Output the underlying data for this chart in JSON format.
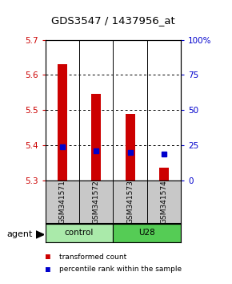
{
  "title": "GDS3547 / 1437956_at",
  "samples": [
    "GSM341571",
    "GSM341572",
    "GSM341573",
    "GSM341574"
  ],
  "bar_bottoms": [
    5.3,
    5.3,
    5.3,
    5.3
  ],
  "bar_tops": [
    5.63,
    5.545,
    5.49,
    5.335
  ],
  "percentile_values": [
    5.395,
    5.385,
    5.38,
    5.375
  ],
  "ylim": [
    5.3,
    5.7
  ],
  "yticks_left": [
    5.3,
    5.4,
    5.5,
    5.6,
    5.7
  ],
  "yticks_right": [
    0,
    25,
    50,
    75,
    100
  ],
  "bar_color": "#CC0000",
  "dot_color": "#0000CC",
  "left_tick_color": "#CC0000",
  "right_tick_color": "#0000CC",
  "legend_items": [
    {
      "color": "#CC0000",
      "label": "transformed count"
    },
    {
      "color": "#0000CC",
      "label": "percentile rank within the sample"
    }
  ],
  "agent_label": "agent",
  "sample_box_color": "#C8C8C8",
  "control_color": "#AAEAAA",
  "u28_color": "#55CC55",
  "x_positions": [
    0.5,
    1.5,
    2.5,
    3.5
  ],
  "bar_width": 0.28,
  "dot_size": 5
}
